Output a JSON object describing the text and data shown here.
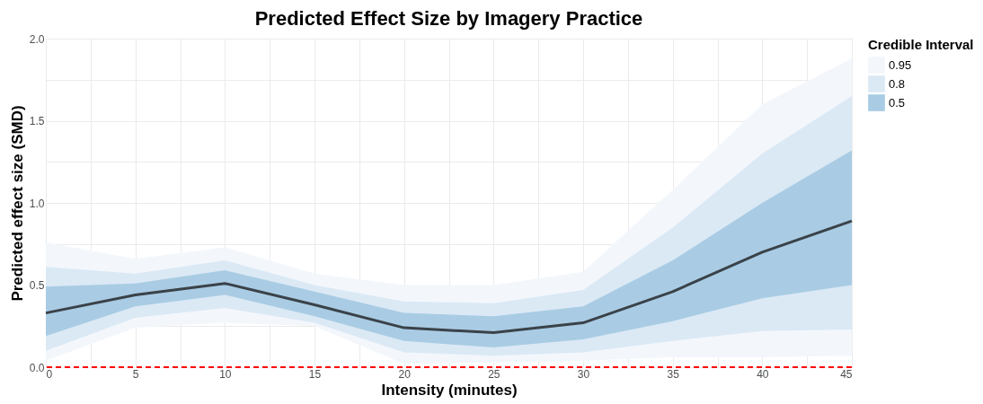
{
  "chart_data": {
    "type": "line",
    "title": "Predicted Effect Size by Imagery Practice",
    "xlabel": "Intensity (minutes)",
    "ylabel": "Predicted effect size (SMD)",
    "legend_title": "Credible Interval",
    "x": [
      0,
      5,
      10,
      15,
      20,
      25,
      30,
      35,
      40,
      45
    ],
    "series": [
      {
        "type": "area",
        "name": "0.95",
        "color": "#f3f7fc",
        "values": [
          null,
          null,
          null,
          null,
          null,
          null,
          null,
          null,
          null,
          null
        ],
        "lower": [
          0.04,
          0.24,
          0.27,
          0.25,
          0.02,
          0.03,
          0.04,
          0.06,
          0.06,
          0.07
        ],
        "upper": [
          0.76,
          0.66,
          0.73,
          0.57,
          0.5,
          0.5,
          0.58,
          1.08,
          1.6,
          1.88
        ]
      },
      {
        "type": "area",
        "name": "0.8",
        "color": "#dbe9f5",
        "values": [
          null,
          null,
          null,
          null,
          null,
          null,
          null,
          null,
          null,
          null
        ],
        "lower": [
          0.1,
          0.3,
          0.36,
          0.27,
          0.09,
          0.07,
          0.09,
          0.16,
          0.22,
          0.23
        ],
        "upper": [
          0.61,
          0.57,
          0.65,
          0.5,
          0.4,
          0.39,
          0.47,
          0.85,
          1.3,
          1.65
        ]
      },
      {
        "type": "area",
        "name": "0.5",
        "color": "#a9cce4",
        "values": [
          null,
          null,
          null,
          null,
          null,
          null,
          null,
          null,
          null,
          null
        ],
        "lower": [
          0.19,
          0.37,
          0.44,
          0.31,
          0.16,
          0.12,
          0.17,
          0.28,
          0.42,
          0.5
        ],
        "upper": [
          0.49,
          0.51,
          0.59,
          0.46,
          0.33,
          0.31,
          0.37,
          0.65,
          1.0,
          1.32
        ]
      },
      {
        "type": "line",
        "color": "#3a4249",
        "values": [
          0.33,
          0.44,
          0.51,
          0.38,
          0.24,
          0.21,
          0.27,
          0.46,
          0.7,
          0.89
        ]
      }
    ],
    "xlim": [
      0,
      45
    ],
    "xticks": [
      0,
      {
        "value": 2.5,
        "label": null
      },
      5,
      {
        "value": 7.5,
        "label": null
      },
      10,
      {
        "value": 12.5,
        "label": null
      },
      15,
      {
        "value": 17.5,
        "label": null
      },
      20,
      {
        "value": 22.5,
        "label": null
      },
      25,
      {
        "value": 27.5,
        "label": null
      },
      30,
      {
        "value": 32.5,
        "label": null
      },
      35,
      {
        "value": 37.5,
        "label": null
      },
      40,
      {
        "value": 42.5,
        "label": null
      },
      45
    ],
    "ylim": [
      0,
      2
    ],
    "yticks": [
      {
        "value": 0,
        "label": "0.0"
      },
      {
        "value": 0.25,
        "label": null
      },
      {
        "value": 0.5,
        "label": "0.5"
      },
      {
        "value": 0.75,
        "label": null
      },
      {
        "value": 1,
        "label": "1.0"
      },
      {
        "value": 1.25,
        "label": null
      },
      {
        "value": 1.5,
        "label": "1.5"
      },
      {
        "value": 1.75,
        "label": null
      },
      {
        "value": 2,
        "label": "2.0"
      }
    ],
    "ref_lines": [
      {
        "axis": "y",
        "value": 0,
        "color": "#ff0000",
        "line_style": "dashed"
      }
    ],
    "grid": true,
    "legend": "right",
    "line_style": "solid",
    "marker": "none"
  }
}
